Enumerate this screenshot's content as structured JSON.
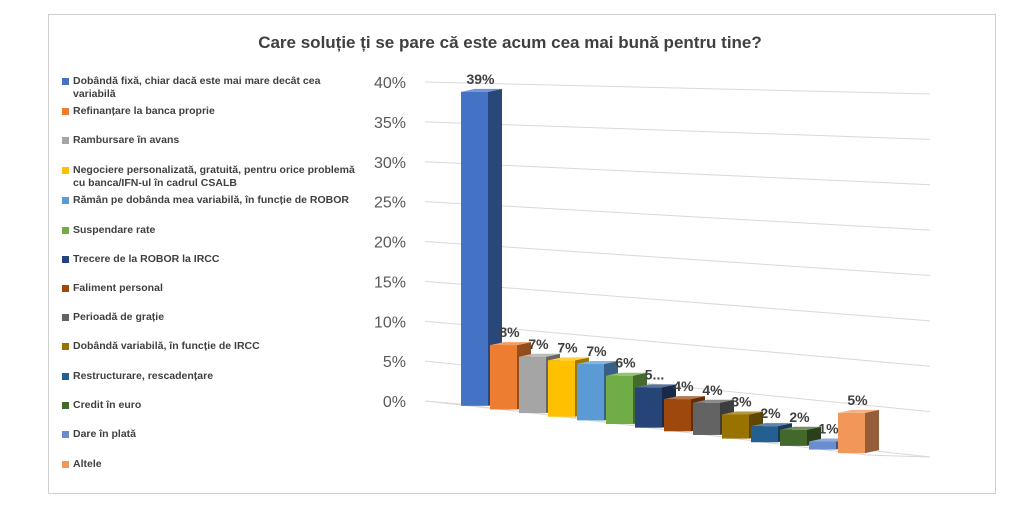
{
  "chart_data": {
    "type": "bar",
    "title": "Care soluție ți se pare că este acum cea mai bună pentru tine?",
    "xlabel": "",
    "ylabel": "",
    "ylim": [
      0,
      40
    ],
    "yticks": [
      "0%",
      "5%",
      "10%",
      "15%",
      "20%",
      "25%",
      "30%",
      "35%",
      "40%"
    ],
    "grid": true,
    "legend_position": "left",
    "categories": [
      "Dobândă fixă, chiar dacă este mai mare decât cea variabilă",
      "Refinanțare la banca proprie",
      "Rambursare în avans",
      "Negociere personalizată, gratuită, pentru orice problemă cu banca/IFN-ul în cadrul CSALB",
      "Rămân pe dobânda mea variabilă, în funcție de ROBOR",
      "Suspendare rate",
      "Trecere de la ROBOR la IRCC",
      "Faliment personal",
      "Perioadă de grație",
      "Dobândă variabilă, în funcție de IRCC",
      "Restructurare, rescadențare",
      "Credit în euro",
      "Dare în plată",
      "Altele"
    ],
    "values": [
      39,
      8,
      7,
      7,
      7,
      6,
      5,
      4,
      4,
      3,
      2,
      2,
      1,
      5
    ],
    "data_labels": [
      "39%",
      "8%",
      "7%",
      "7%",
      "7%",
      "6%",
      "5...",
      "4%",
      "4%",
      "3%",
      "2%",
      "2%",
      "1%",
      "5%"
    ],
    "colors": [
      "#4472c4",
      "#ed7d31",
      "#a5a5a5",
      "#ffc000",
      "#5b9bd5",
      "#70ad47",
      "#264478",
      "#9e480e",
      "#636363",
      "#997300",
      "#255e91",
      "#43682b",
      "#698ed0",
      "#f1975a"
    ]
  }
}
